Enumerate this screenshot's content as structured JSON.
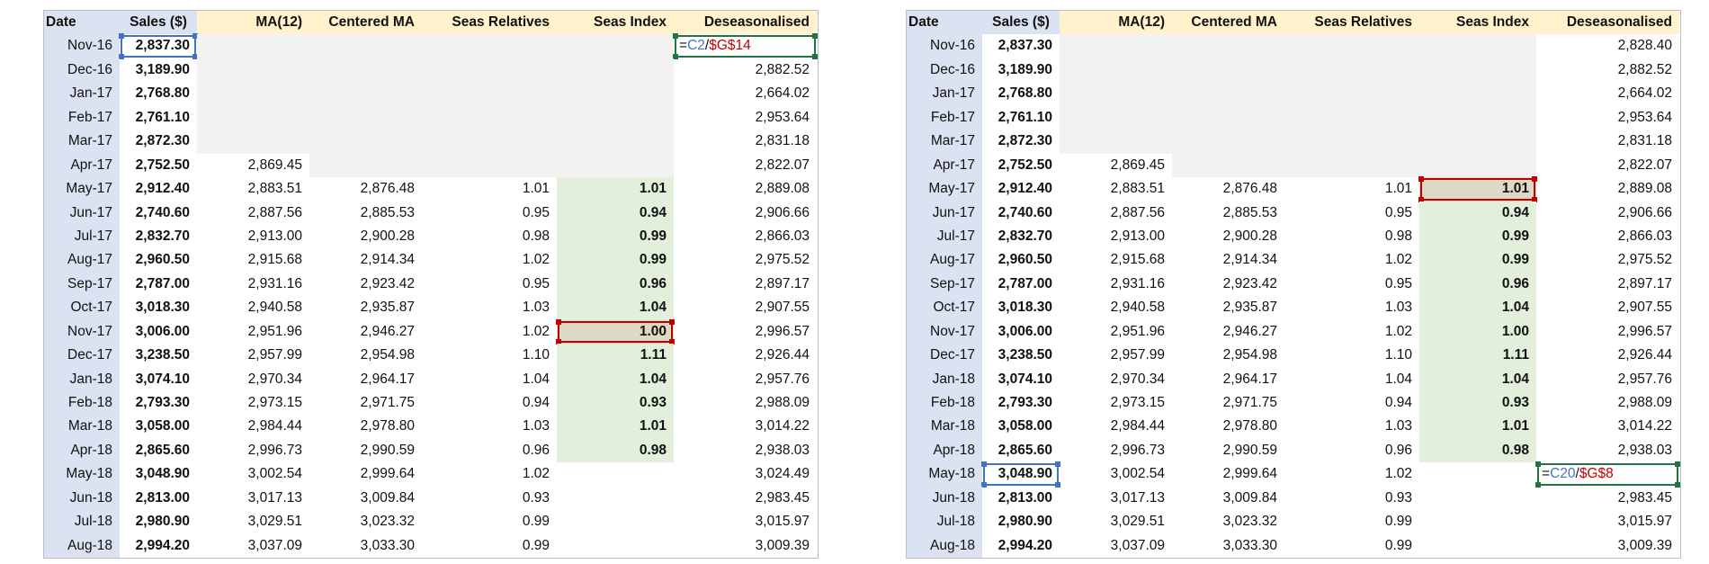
{
  "headers": [
    "Date",
    "Sales ($)",
    "MA(12)",
    "Centered MA",
    "Seas Relatives",
    "Seas Index",
    "Deseasonalised"
  ],
  "rows": [
    [
      "Nov-16",
      "2,837.30",
      "",
      "",
      "",
      "",
      "2,828.40"
    ],
    [
      "Dec-16",
      "3,189.90",
      "",
      "",
      "",
      "",
      "2,882.52"
    ],
    [
      "Jan-17",
      "2,768.80",
      "",
      "",
      "",
      "",
      "2,664.02"
    ],
    [
      "Feb-17",
      "2,761.10",
      "",
      "",
      "",
      "",
      "2,953.64"
    ],
    [
      "Mar-17",
      "2,872.30",
      "",
      "",
      "",
      "",
      "2,831.18"
    ],
    [
      "Apr-17",
      "2,752.50",
      "2,869.45",
      "",
      "",
      "",
      "2,822.07"
    ],
    [
      "May-17",
      "2,912.40",
      "2,883.51",
      "2,876.48",
      "1.01",
      "1.01",
      "2,889.08"
    ],
    [
      "Jun-17",
      "2,740.60",
      "2,887.56",
      "2,885.53",
      "0.95",
      "0.94",
      "2,906.66"
    ],
    [
      "Jul-17",
      "2,832.70",
      "2,913.00",
      "2,900.28",
      "0.98",
      "0.99",
      "2,866.03"
    ],
    [
      "Aug-17",
      "2,960.50",
      "2,915.68",
      "2,914.34",
      "1.02",
      "0.99",
      "2,975.52"
    ],
    [
      "Sep-17",
      "2,787.00",
      "2,931.16",
      "2,923.42",
      "0.95",
      "0.96",
      "2,897.17"
    ],
    [
      "Oct-17",
      "3,018.30",
      "2,940.58",
      "2,935.87",
      "1.03",
      "1.04",
      "2,907.55"
    ],
    [
      "Nov-17",
      "3,006.00",
      "2,951.96",
      "2,946.27",
      "1.02",
      "1.00",
      "2,996.57"
    ],
    [
      "Dec-17",
      "3,238.50",
      "2,957.99",
      "2,954.98",
      "1.10",
      "1.11",
      "2,926.44"
    ],
    [
      "Jan-18",
      "3,074.10",
      "2,970.34",
      "2,964.17",
      "1.04",
      "1.04",
      "2,957.76"
    ],
    [
      "Feb-18",
      "2,793.30",
      "2,973.15",
      "2,971.75",
      "0.94",
      "0.93",
      "2,988.09"
    ],
    [
      "Mar-18",
      "3,058.00",
      "2,984.44",
      "2,978.80",
      "1.03",
      "1.01",
      "3,014.22"
    ],
    [
      "Apr-18",
      "2,865.60",
      "2,996.73",
      "2,990.59",
      "0.96",
      "0.98",
      "2,938.03"
    ],
    [
      "May-18",
      "3,048.90",
      "3,002.54",
      "2,999.64",
      "1.02",
      "",
      "3,024.49"
    ],
    [
      "Jun-18",
      "2,813.00",
      "3,017.13",
      "3,009.84",
      "0.93",
      "",
      "2,983.45"
    ],
    [
      "Jul-18",
      "2,980.90",
      "3,029.51",
      "3,023.32",
      "0.99",
      "",
      "3,015.97"
    ],
    [
      "Aug-18",
      "2,994.20",
      "3,037.09",
      "3,033.30",
      "0.99",
      "",
      "3,009.39"
    ]
  ],
  "sheets": [
    {
      "edit": {
        "row": 0,
        "col": 6,
        "eq": "=",
        "ref1": "C2",
        "op": "/",
        "ref2": "$G$14"
      },
      "blue": {
        "row": 0,
        "col": 1
      },
      "red": {
        "row": 12,
        "col": 5
      }
    },
    {
      "edit": {
        "row": 18,
        "col": 6,
        "eq": "=",
        "ref1": "C20",
        "op": "/",
        "ref2": "$G$8"
      },
      "blue": {
        "row": 18,
        "col": 1
      },
      "red": {
        "row": 6,
        "col": 5
      }
    }
  ],
  "colors": {
    "header_fill": "#fff2cc",
    "date_fill": "#dbe2f1",
    "seas_index_fill": "#e2efda",
    "blank_fill": "#f2f2f2",
    "ref_blue": "#4472c4",
    "ref_red": "#c00000",
    "edit_border": "#217346"
  }
}
